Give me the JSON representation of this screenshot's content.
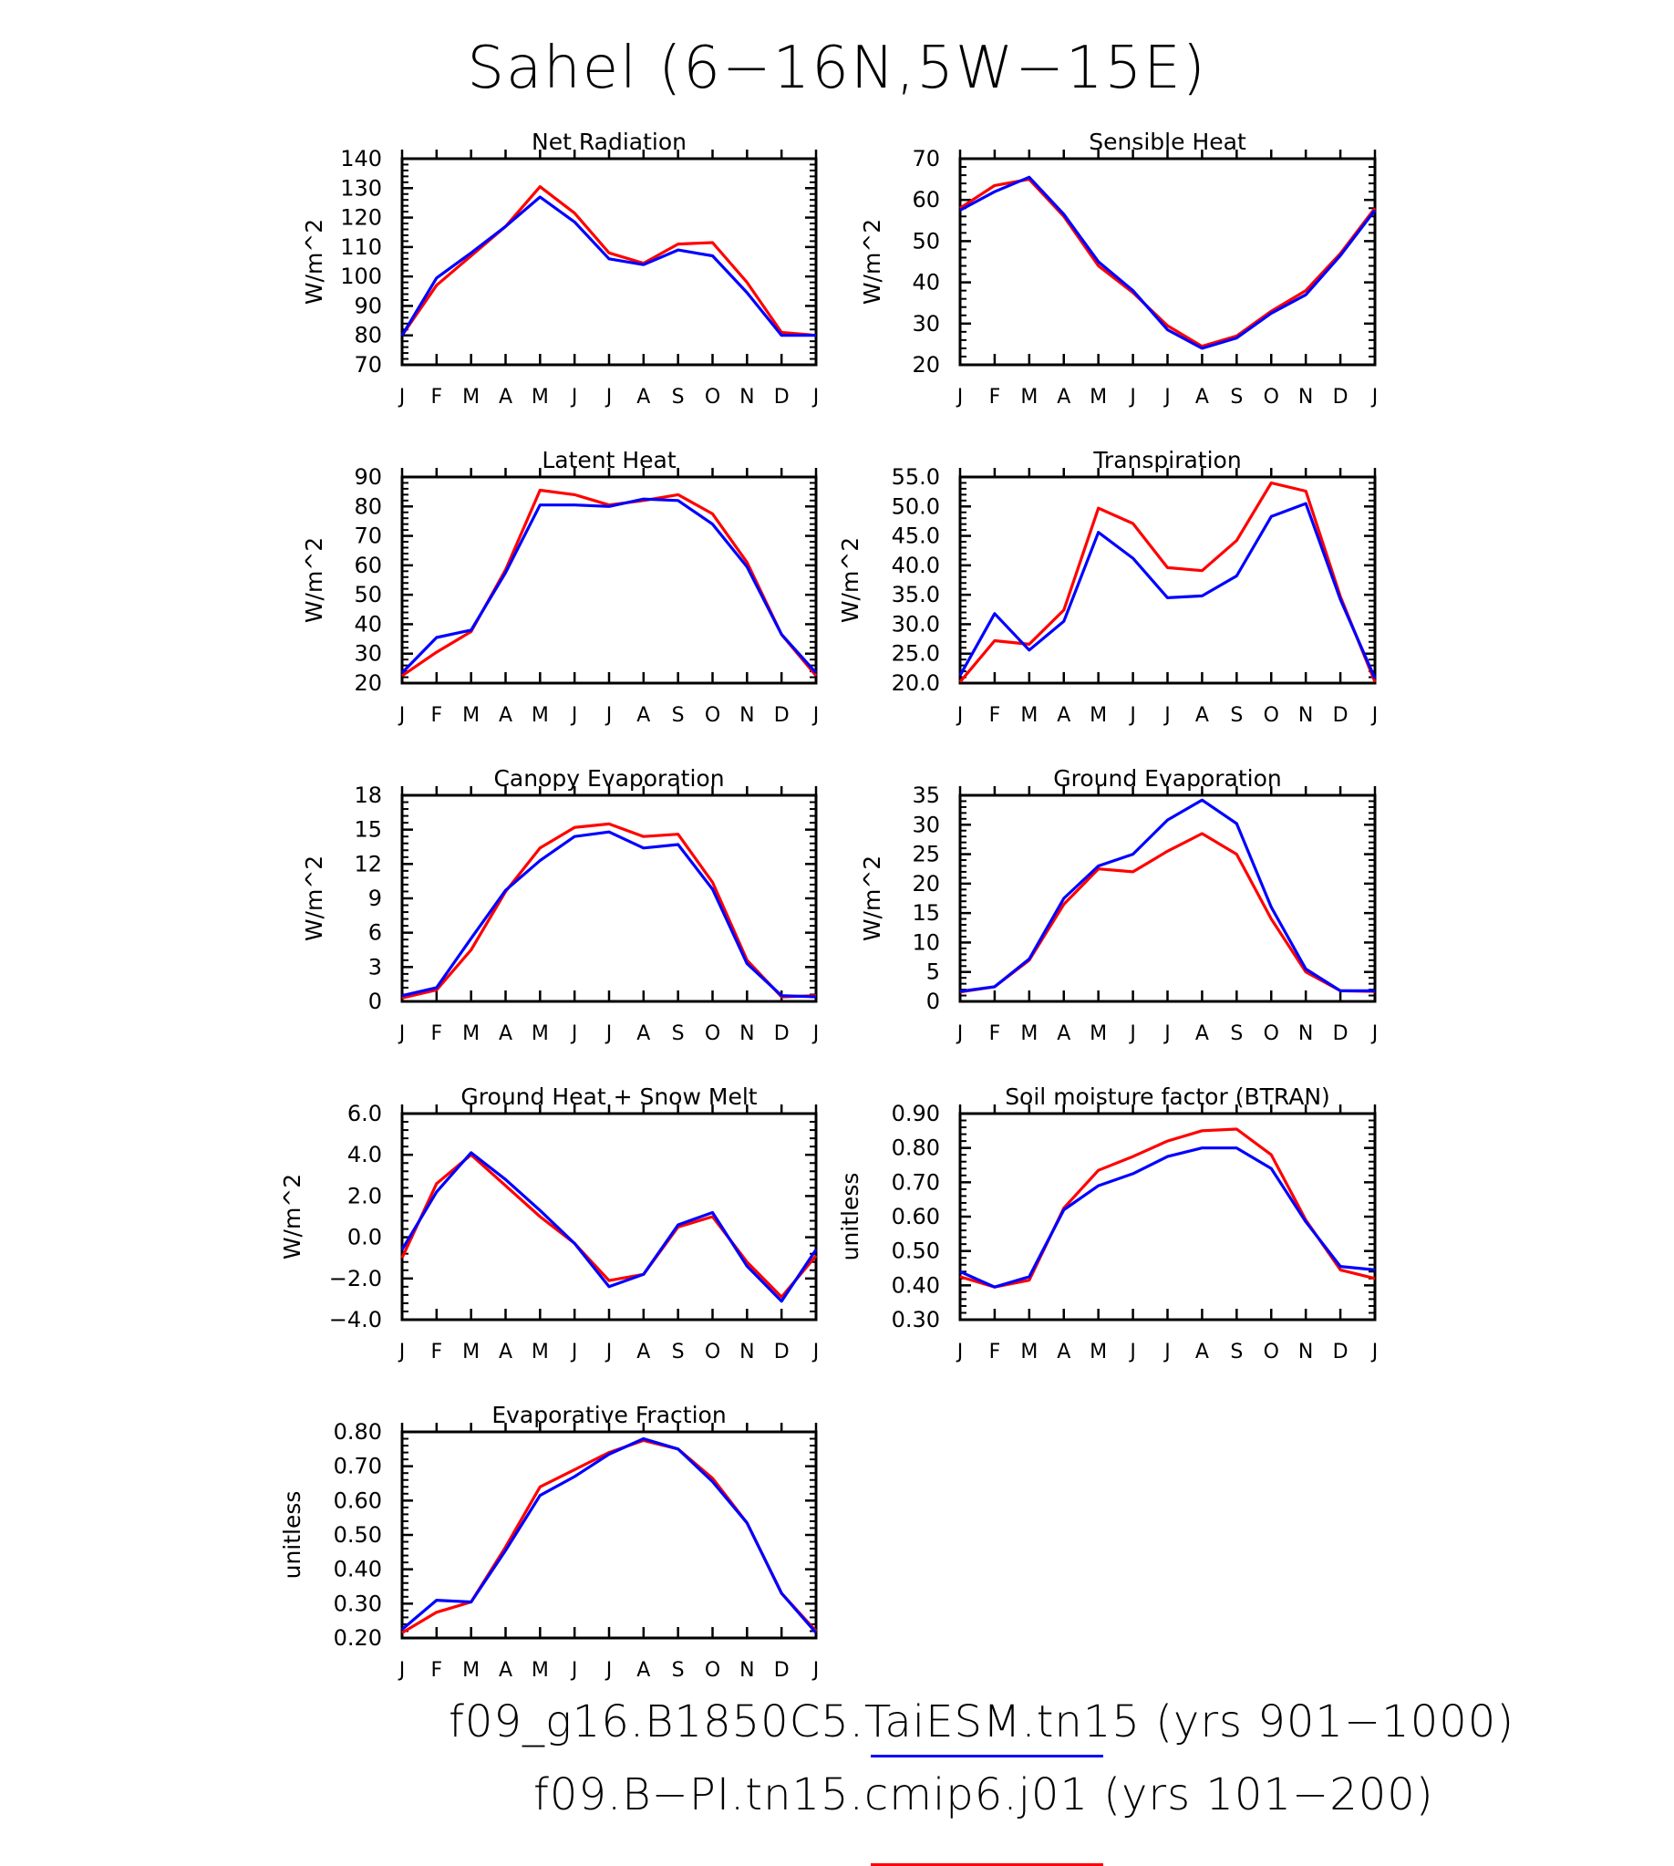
{
  "figure": {
    "title": "Sahel (6−16N,5W−15E)",
    "legend": [
      {
        "label": "f09_g16.B1850C5.TaiESM.tn15 (yrs 901−1000)",
        "color": "#0000ff"
      },
      {
        "label": "f09.B−PI.tn15.cmip6.j01 (yrs 101−200)",
        "color": "#ff0000"
      }
    ]
  },
  "chart_data": [
    {
      "type": "line",
      "title": "Net Radiation",
      "ylabel": "W/m^2",
      "x": [
        "J",
        "F",
        "M",
        "A",
        "M",
        "J",
        "J",
        "A",
        "S",
        "O",
        "N",
        "D",
        "J"
      ],
      "ylim": [
        70,
        140
      ],
      "yticks": [
        "70",
        "80",
        "90",
        "100",
        "110",
        "120",
        "130",
        "140"
      ],
      "series": [
        {
          "color": "#ff0000",
          "values": [
            80,
            97,
            107,
            117,
            130.5,
            121.5,
            108,
            104.5,
            111,
            111.5,
            98,
            81,
            80
          ]
        },
        {
          "color": "#0000ff",
          "values": [
            80,
            99.5,
            108,
            117,
            127,
            118.5,
            106,
            104,
            109,
            107,
            94.5,
            80,
            80
          ]
        }
      ]
    },
    {
      "type": "line",
      "title": "Sensible Heat",
      "ylabel": "W/m^2",
      "x": [
        "J",
        "F",
        "M",
        "A",
        "M",
        "J",
        "J",
        "A",
        "S",
        "O",
        "N",
        "D",
        "J"
      ],
      "ylim": [
        20,
        70
      ],
      "yticks": [
        "20",
        "30",
        "40",
        "50",
        "60",
        "70"
      ],
      "series": [
        {
          "color": "#ff0000",
          "values": [
            58,
            63.5,
            65,
            56,
            44,
            37.5,
            29.5,
            24.5,
            27,
            33,
            38,
            47,
            58
          ]
        },
        {
          "color": "#0000ff",
          "values": [
            57.5,
            62,
            65.5,
            56.5,
            45,
            38,
            28.5,
            24,
            26.5,
            32.5,
            37,
            46.5,
            57.5
          ]
        }
      ]
    },
    {
      "type": "line",
      "title": "Latent Heat",
      "ylabel": "W/m^2",
      "x": [
        "J",
        "F",
        "M",
        "A",
        "M",
        "J",
        "J",
        "A",
        "S",
        "O",
        "N",
        "D",
        "J"
      ],
      "ylim": [
        20,
        90
      ],
      "yticks": [
        "20",
        "30",
        "40",
        "50",
        "60",
        "70",
        "80",
        "90"
      ],
      "series": [
        {
          "color": "#ff0000",
          "values": [
            22.5,
            30.5,
            37.5,
            58.5,
            85.5,
            84,
            80.5,
            82,
            84,
            77.5,
            61,
            36.5,
            22.5
          ]
        },
        {
          "color": "#0000ff",
          "values": [
            23.5,
            35.5,
            38,
            57.5,
            80.5,
            80.5,
            80,
            82.5,
            82,
            74,
            59.5,
            36.5,
            23.5
          ]
        }
      ]
    },
    {
      "type": "line",
      "title": "Transpiration",
      "ylabel": "W/m^2",
      "x": [
        "J",
        "F",
        "M",
        "A",
        "M",
        "J",
        "J",
        "A",
        "S",
        "O",
        "N",
        "D",
        "J"
      ],
      "ylim": [
        20,
        55
      ],
      "yticks": [
        "20.0",
        "25.0",
        "30.0",
        "35.0",
        "40.0",
        "45.0",
        "50.0",
        "55.0"
      ],
      "series": [
        {
          "color": "#ff0000",
          "values": [
            20.2,
            27.2,
            26.6,
            32.4,
            49.7,
            47.1,
            39.6,
            39.1,
            44.2,
            54,
            52.6,
            34.7,
            20.2
          ]
        },
        {
          "color": "#0000ff",
          "values": [
            21.3,
            31.8,
            25.6,
            30.5,
            45.6,
            41.2,
            34.5,
            34.8,
            38.2,
            48.3,
            50.5,
            34.2,
            20.8
          ]
        }
      ]
    },
    {
      "type": "line",
      "title": "Canopy Evaporation",
      "ylabel": "W/m^2",
      "x": [
        "J",
        "F",
        "M",
        "A",
        "M",
        "J",
        "J",
        "A",
        "S",
        "O",
        "N",
        "D",
        "J"
      ],
      "ylim": [
        0,
        18
      ],
      "yticks": [
        "0",
        "3",
        "6",
        "9",
        "12",
        "15",
        "18"
      ],
      "series": [
        {
          "color": "#ff0000",
          "values": [
            0.3,
            1,
            4.5,
            9.6,
            13.4,
            15.2,
            15.5,
            14.4,
            14.6,
            10.4,
            3.6,
            0.4,
            0.5
          ]
        },
        {
          "color": "#0000ff",
          "values": [
            0.5,
            1.2,
            5.5,
            9.7,
            12.3,
            14.4,
            14.8,
            13.4,
            13.7,
            9.8,
            3.3,
            0.5,
            0.4
          ]
        }
      ]
    },
    {
      "type": "line",
      "title": "Ground Evaporation",
      "ylabel": "W/m^2",
      "x": [
        "J",
        "F",
        "M",
        "A",
        "M",
        "J",
        "J",
        "A",
        "S",
        "O",
        "N",
        "D",
        "J"
      ],
      "ylim": [
        0,
        35
      ],
      "yticks": [
        "0",
        "5",
        "10",
        "15",
        "20",
        "25",
        "30",
        "35"
      ],
      "series": [
        {
          "color": "#ff0000",
          "values": [
            1.6,
            2.5,
            7,
            16.5,
            22.5,
            22,
            25.5,
            28.5,
            25,
            14,
            5,
            1.8,
            1.7
          ]
        },
        {
          "color": "#0000ff",
          "values": [
            1.7,
            2.5,
            7.2,
            17.5,
            23,
            25,
            30.8,
            34.2,
            30.2,
            16,
            5.5,
            1.8,
            1.8
          ]
        }
      ]
    },
    {
      "type": "line",
      "title": "Ground Heat + Snow Melt",
      "ylabel": "W/m^2",
      "x": [
        "J",
        "F",
        "M",
        "A",
        "M",
        "J",
        "J",
        "A",
        "S",
        "O",
        "N",
        "D",
        "J"
      ],
      "ylim": [
        -4,
        6
      ],
      "yticks": [
        "−4.0",
        "−2.0",
        "0.0",
        "2.0",
        "4.0",
        "6.0"
      ],
      "series": [
        {
          "color": "#ff0000",
          "values": [
            -1,
            2.6,
            4,
            2.5,
            1,
            -0.3,
            -2.1,
            -1.8,
            0.5,
            1,
            -1.2,
            -2.9,
            -0.9
          ]
        },
        {
          "color": "#0000ff",
          "values": [
            -0.6,
            2.2,
            4.1,
            2.8,
            1.3,
            -0.3,
            -2.4,
            -1.8,
            0.6,
            1.2,
            -1.4,
            -3.1,
            -0.6
          ]
        }
      ]
    },
    {
      "type": "line",
      "title": "Soil moisture factor (BTRAN)",
      "ylabel": "unitless",
      "x": [
        "J",
        "F",
        "M",
        "A",
        "M",
        "J",
        "J",
        "A",
        "S",
        "O",
        "N",
        "D",
        "J"
      ],
      "ylim": [
        0.3,
        0.9
      ],
      "yticks": [
        "0.30",
        "0.40",
        "0.50",
        "0.60",
        "0.70",
        "0.80",
        "0.90"
      ],
      "series": [
        {
          "color": "#ff0000",
          "values": [
            0.425,
            0.395,
            0.415,
            0.625,
            0.735,
            0.775,
            0.82,
            0.85,
            0.855,
            0.78,
            0.59,
            0.445,
            0.42
          ]
        },
        {
          "color": "#0000ff",
          "values": [
            0.44,
            0.395,
            0.425,
            0.62,
            0.69,
            0.725,
            0.775,
            0.8,
            0.8,
            0.74,
            0.585,
            0.455,
            0.445
          ]
        }
      ]
    },
    {
      "type": "line",
      "title": "Evaporative Fraction",
      "ylabel": "unitless",
      "x": [
        "J",
        "F",
        "M",
        "A",
        "M",
        "J",
        "J",
        "A",
        "S",
        "O",
        "N",
        "D",
        "J"
      ],
      "ylim": [
        0.2,
        0.8
      ],
      "yticks": [
        "0.20",
        "0.30",
        "0.40",
        "0.50",
        "0.60",
        "0.70",
        "0.80"
      ],
      "series": [
        {
          "color": "#ff0000",
          "values": [
            0.215,
            0.275,
            0.305,
            0.465,
            0.64,
            0.69,
            0.74,
            0.775,
            0.75,
            0.665,
            0.535,
            0.33,
            0.22
          ]
        },
        {
          "color": "#0000ff",
          "values": [
            0.225,
            0.31,
            0.305,
            0.455,
            0.615,
            0.67,
            0.735,
            0.78,
            0.75,
            0.655,
            0.535,
            0.33,
            0.215
          ]
        }
      ]
    }
  ]
}
